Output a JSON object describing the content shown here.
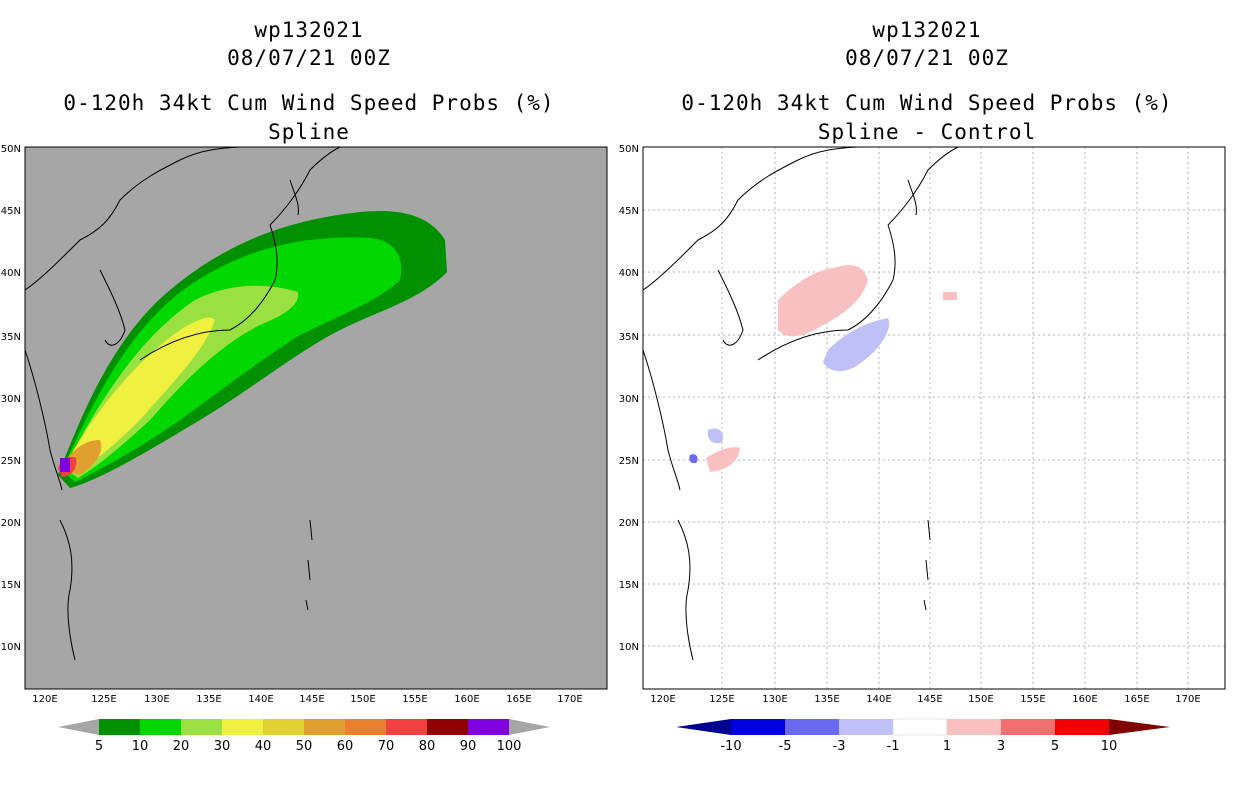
{
  "left_panel": {
    "storm_id": "wp132021",
    "datetime": "08/07/21 00Z",
    "product_title": "0-120h 34kt Cum Wind Speed Probs (%)",
    "subtitle": "Spline",
    "background_color": "#a6a6a6",
    "colorbar": {
      "labels": [
        "5",
        "10",
        "20",
        "30",
        "40",
        "50",
        "60",
        "70",
        "80",
        "90",
        "100"
      ],
      "colors": [
        "#009000",
        "#00d800",
        "#9ae040",
        "#f0f040",
        "#e0d030",
        "#e0a030",
        "#e88030",
        "#f04040",
        "#900000",
        "#8000e0"
      ],
      "end_color": "#a6a6a6"
    }
  },
  "right_panel": {
    "storm_id": "wp132021",
    "datetime": "08/07/21 00Z",
    "product_title": "0-120h 34kt Cum Wind Speed Probs (%)",
    "subtitle": "Spline - Control",
    "colorbar": {
      "labels": [
        "-10",
        "-5",
        "-3",
        "-1",
        "1",
        "3",
        "5",
        "10"
      ],
      "colors": [
        "#0000e0",
        "#6a6af0",
        "#c0c0f8",
        "#ffffff",
        "#f8c0c0",
        "#f07070",
        "#f00000"
      ],
      "low_end_color": "#000090",
      "high_end_color": "#800000"
    }
  },
  "map_axes": {
    "lon_labels": [
      "120E",
      "125E",
      "130E",
      "135E",
      "140E",
      "145E",
      "150E",
      "155E",
      "160E",
      "165E",
      "170E"
    ],
    "lat_labels": [
      "50N",
      "45N",
      "40N",
      "35N",
      "30N",
      "25N",
      "20N",
      "15N",
      "10N"
    ]
  }
}
